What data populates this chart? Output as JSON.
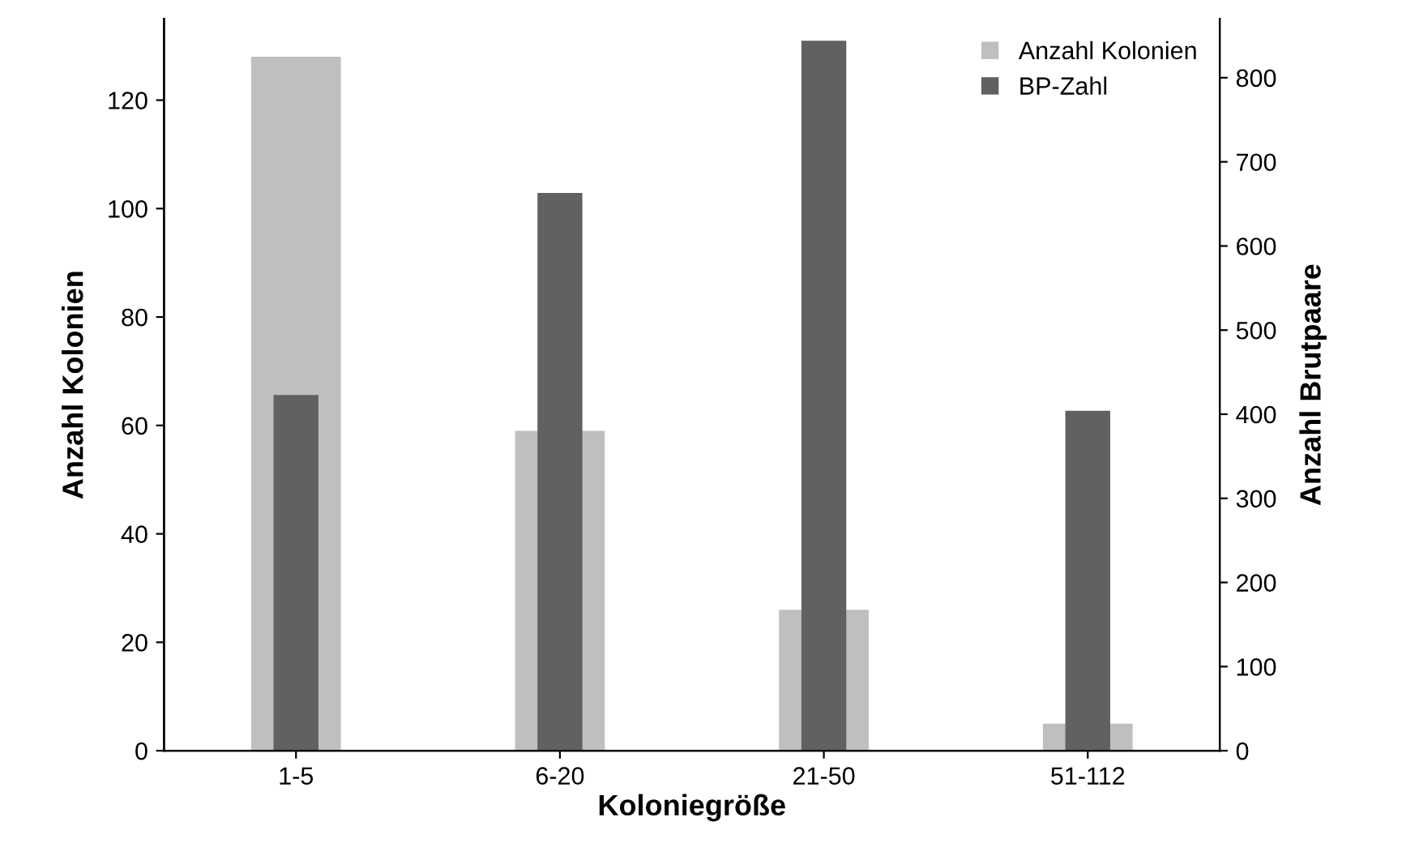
{
  "chart_data": {
    "type": "bar",
    "xlabel": "Koloniegröße",
    "ylabel": "Anzahl Kolonien",
    "y2label": "Anzahl Brutpaare",
    "categories": [
      "1-5",
      "6-20",
      "21-50",
      "51-112"
    ],
    "series": [
      {
        "name": "Anzahl Kolonien",
        "color": "#bfbfbf",
        "values": [
          128,
          59,
          26,
          5
        ]
      },
      {
        "name": "BP-Zahl",
        "color": "#616161",
        "values": [
          423,
          663,
          844,
          404
        ],
        "axis": "y2"
      }
    ],
    "ylim": [
      0,
      135
    ],
    "yticks": [
      0,
      20,
      40,
      60,
      80,
      100,
      120
    ],
    "y2lim": [
      0,
      870
    ],
    "y2ticks": [
      0,
      100,
      200,
      300,
      400,
      500,
      600,
      700,
      800
    ],
    "grid": false,
    "legend": "top right"
  }
}
